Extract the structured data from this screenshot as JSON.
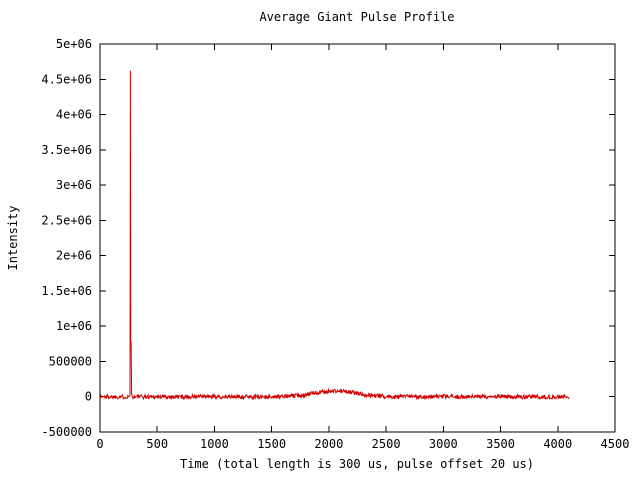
{
  "chart_data": {
    "type": "line",
    "title": "Average Giant Pulse Profile",
    "xlabel": "Time (total length is 300 us, pulse offset 20 us)",
    "ylabel": "Intensity",
    "xlim": [
      0,
      4500
    ],
    "ylim": [
      -500000,
      5000000
    ],
    "grid": false,
    "legend": "none",
    "background_color": "#ffffff",
    "border_color": "#000000",
    "x_ticks": [
      0,
      500,
      1000,
      1500,
      2000,
      2500,
      3000,
      3500,
      4000,
      4500
    ],
    "x_tick_labels": [
      "0",
      "500",
      "1000",
      "1500",
      "2000",
      "2500",
      "3000",
      "3500",
      "4000",
      "4500"
    ],
    "y_ticks": [
      -500000,
      0,
      500000,
      1000000,
      1500000,
      2000000,
      2500000,
      3000000,
      3500000,
      4000000,
      4500000,
      5000000
    ],
    "y_tick_labels": [
      "-500000",
      "0",
      "500000",
      "1e+06",
      "1.5e+06",
      "2e+06",
      "2.5e+06",
      "3e+06",
      "3.5e+06",
      "4e+06",
      "4.5e+06",
      "5e+06"
    ],
    "series": [
      {
        "name": "average-giant-pulse",
        "color": "#d00000",
        "x_start": 0,
        "x_end": 4100,
        "x_step": 4,
        "baseline": 0,
        "noise_amplitude": 30000,
        "noise_seed": 1337,
        "bump": {
          "center": 2060,
          "amplitude": 80000,
          "sigma": 190
        },
        "spike_skip": [
          258,
          282
        ],
        "spike_points": [
          [
            262,
            20000
          ],
          [
            266,
            4620000
          ],
          [
            268,
            800000
          ],
          [
            272,
            780000
          ],
          [
            276,
            50000
          ],
          [
            280,
            20000
          ]
        ]
      }
    ]
  }
}
